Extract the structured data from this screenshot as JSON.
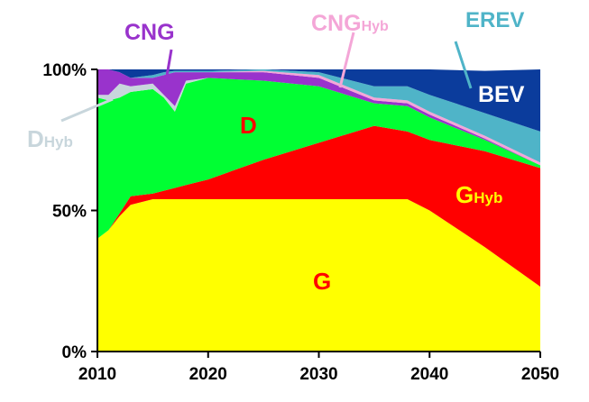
{
  "chart_data": {
    "type": "area",
    "stacked": true,
    "normalized": true,
    "x": [
      2010,
      2011,
      2012,
      2013,
      2015,
      2016,
      2017,
      2018,
      2020,
      2025,
      2030,
      2035,
      2038,
      2040,
      2045,
      2050
    ],
    "xlim": [
      2010,
      2050
    ],
    "ylim": [
      0,
      100
    ],
    "xticks": [
      "2010",
      "2020",
      "2030",
      "2040",
      "2050"
    ],
    "yticks": [
      "0%",
      "50%",
      "100%"
    ],
    "xtick_values": [
      2010,
      2020,
      2030,
      2040,
      2050
    ],
    "ytick_values": [
      0,
      50,
      100
    ],
    "grid": false,
    "series": [
      {
        "name": "G",
        "label": "G",
        "color": "#ffff00",
        "label_color": "#ff0000",
        "values": [
          40,
          43,
          48,
          52,
          54,
          54,
          54,
          54,
          54,
          54,
          54,
          54,
          54,
          50,
          37,
          23
        ]
      },
      {
        "name": "GHyb",
        "label": "G",
        "sub": "Hyb",
        "color": "#ff0000",
        "label_color": "#ffff00",
        "values": [
          0,
          0,
          1,
          3,
          2,
          3,
          4,
          5,
          7,
          14,
          20,
          26,
          24,
          25,
          34,
          42
        ]
      },
      {
        "name": "D",
        "label": "D",
        "color": "#00ff33",
        "label_color": "#ff0000",
        "values": [
          50,
          46,
          41,
          37,
          37,
          33,
          27,
          36,
          36,
          28,
          20,
          8,
          9,
          8,
          4,
          1
        ]
      },
      {
        "name": "DHyb",
        "label": "D",
        "sub": "Hyb",
        "color": "#c8d6dc",
        "label_color": "#c8d6dc",
        "values": [
          1,
          2,
          5,
          2,
          2,
          1,
          2,
          1,
          0,
          0,
          0,
          0,
          0,
          0,
          0,
          0
        ]
      },
      {
        "name": "CNG",
        "label": "CNG",
        "color": "#9933cc",
        "label_color": "#9933cc",
        "values": [
          9,
          9,
          4,
          3,
          2,
          7,
          12,
          3,
          2,
          3,
          3,
          1,
          1,
          1,
          0.5,
          0
        ]
      },
      {
        "name": "CNGHyb",
        "label": "CNG",
        "sub": "Hyb",
        "color": "#f4a6d7",
        "label_color": "#f4a6d7",
        "values": [
          0,
          0,
          0,
          0,
          0,
          0,
          0,
          0,
          0,
          0.5,
          1,
          1,
          1,
          1,
          1,
          1
        ]
      },
      {
        "name": "EREV",
        "label": "EREV",
        "color": "#4fb4c8",
        "label_color": "#4fb4c8",
        "values": [
          0,
          0,
          0,
          0,
          1,
          1,
          0.5,
          0.5,
          0.5,
          0.5,
          1,
          4,
          5,
          6,
          8,
          11
        ]
      },
      {
        "name": "BEV",
        "label": "BEV",
        "color": "#0b3c9c",
        "label_color": "#ffffff",
        "values": [
          0,
          0,
          1,
          3,
          2,
          1,
          0.5,
          0.5,
          0.5,
          0,
          1,
          6,
          6,
          9,
          15,
          22
        ]
      }
    ],
    "labels": {
      "CNG": "CNG",
      "CNGHyb_main": "CNG",
      "CNGHyb_sub": "Hyb",
      "EREV": "EREV",
      "BEV": "BEV",
      "D": "D",
      "DHyb_main": "D",
      "DHyb_sub": "Hyb",
      "GHyb_main": "G",
      "GHyb_sub": "Hyb",
      "G": "G"
    }
  }
}
